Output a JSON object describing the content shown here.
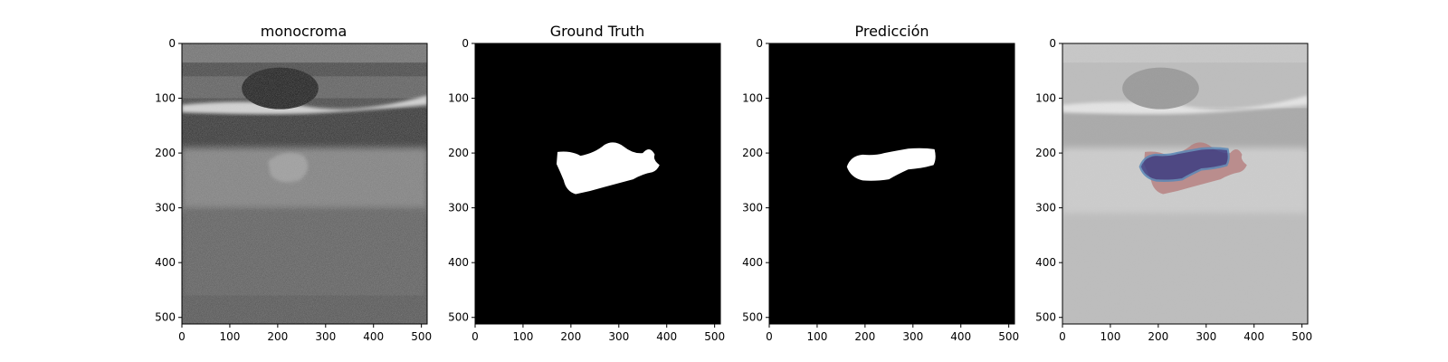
{
  "panels": [
    {
      "title": "monocroma",
      "kind": "ultrasound"
    },
    {
      "title": "Ground Truth",
      "kind": "mask-ground-truth"
    },
    {
      "title": "Predicción",
      "kind": "mask-prediction"
    },
    {
      "title": "",
      "kind": "overlay"
    }
  ],
  "axes": {
    "x_ticks": [
      "0",
      "100",
      "200",
      "300",
      "400",
      "500"
    ],
    "y_ticks": [
      "0",
      "100",
      "200",
      "300",
      "400",
      "500"
    ],
    "range": [
      0,
      512
    ]
  },
  "colors": {
    "mask_background": "#000000",
    "mask_foreground": "#ffffff",
    "overlay_ground_truth": "#b47878",
    "overlay_prediction": "#3c3c82",
    "overlay_prediction_edge": "#5a88b8"
  }
}
